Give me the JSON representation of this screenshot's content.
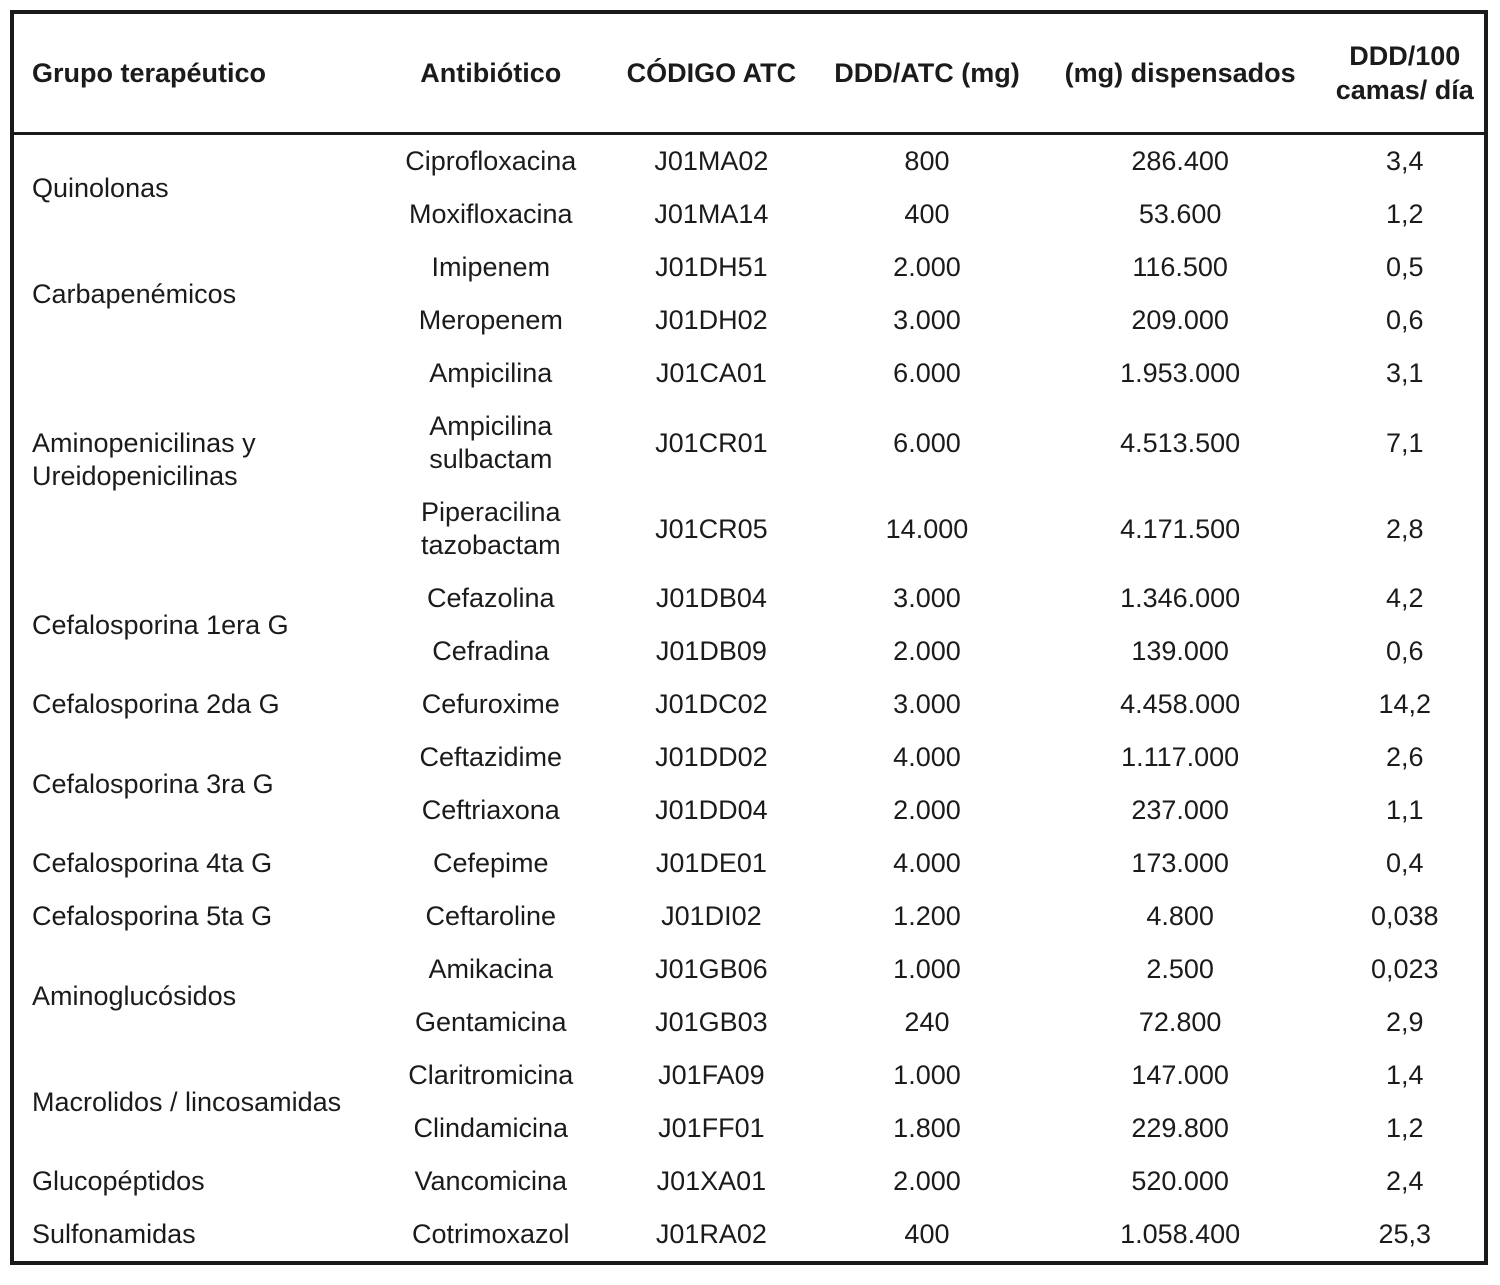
{
  "header": {
    "columns": [
      {
        "label": "Grupo terapéutico"
      },
      {
        "label": "Antibiótico"
      },
      {
        "label": "CÓDIGO ATC"
      },
      {
        "label": "DDD/ATC (mg)"
      },
      {
        "label": "(mg) dispensados"
      },
      {
        "label": "DDD/100 camas/ día"
      }
    ]
  },
  "groups": [
    {
      "name": "Quinolonas"
    },
    {
      "name": "Carbapenémicos"
    },
    {
      "name": "Aminopenicilinas y Ureidopenicilinas"
    },
    {
      "name": "Cefalosporina 1era G"
    },
    {
      "name": "Cefalosporina 2da G"
    },
    {
      "name": "Cefalosporina 3ra G"
    },
    {
      "name": "Cefalosporina 4ta G"
    },
    {
      "name": "Cefalosporina 5ta G"
    },
    {
      "name": "Aminoglucósidos"
    },
    {
      "name": "Macrolidos / lincosamidas"
    },
    {
      "name": "Glucopéptidos"
    },
    {
      "name": "Sulfonamidas"
    }
  ],
  "rows": [
    {
      "antibiotic": "Ciprofloxacina",
      "atc": "J01MA02",
      "ddd_atc": "800",
      "mg_disp": "286.400",
      "ddd100": "3,4"
    },
    {
      "antibiotic": "Moxifloxacina",
      "atc": "J01MA14",
      "ddd_atc": "400",
      "mg_disp": "53.600",
      "ddd100": "1,2"
    },
    {
      "antibiotic": "Imipenem",
      "atc": "J01DH51",
      "ddd_atc": "2.000",
      "mg_disp": "116.500",
      "ddd100": "0,5"
    },
    {
      "antibiotic": "Meropenem",
      "atc": "J01DH02",
      "ddd_atc": "3.000",
      "mg_disp": "209.000",
      "ddd100": "0,6"
    },
    {
      "antibiotic": "Ampicilina",
      "atc": "J01CA01",
      "ddd_atc": "6.000",
      "mg_disp": "1.953.000",
      "ddd100": "3,1"
    },
    {
      "antibiotic": "Ampicilina sulbactam",
      "atc": "J01CR01",
      "ddd_atc": "6.000",
      "mg_disp": "4.513.500",
      "ddd100": "7,1"
    },
    {
      "antibiotic": "Piperacilina tazobactam",
      "atc": "J01CR05",
      "ddd_atc": "14.000",
      "mg_disp": "4.171.500",
      "ddd100": "2,8"
    },
    {
      "antibiotic": "Cefazolina",
      "atc": "J01DB04",
      "ddd_atc": "3.000",
      "mg_disp": "1.346.000",
      "ddd100": "4,2"
    },
    {
      "antibiotic": "Cefradina",
      "atc": "J01DB09",
      "ddd_atc": "2.000",
      "mg_disp": "139.000",
      "ddd100": "0,6"
    },
    {
      "antibiotic": "Cefuroxime",
      "atc": "J01DC02",
      "ddd_atc": "3.000",
      "mg_disp": "4.458.000",
      "ddd100": "14,2"
    },
    {
      "antibiotic": "Ceftazidime",
      "atc": "J01DD02",
      "ddd_atc": "4.000",
      "mg_disp": "1.117.000",
      "ddd100": "2,6"
    },
    {
      "antibiotic": "Ceftriaxona",
      "atc": "J01DD04",
      "ddd_atc": "2.000",
      "mg_disp": "237.000",
      "ddd100": "1,1"
    },
    {
      "antibiotic": "Cefepime",
      "atc": "J01DE01",
      "ddd_atc": "4.000",
      "mg_disp": "173.000",
      "ddd100": "0,4"
    },
    {
      "antibiotic": "Ceftaroline",
      "atc": "J01DI02",
      "ddd_atc": "1.200",
      "mg_disp": "4.800",
      "ddd100": "0,038"
    },
    {
      "antibiotic": "Amikacina",
      "atc": "J01GB06",
      "ddd_atc": "1.000",
      "mg_disp": "2.500",
      "ddd100": "0,023"
    },
    {
      "antibiotic": "Gentamicina",
      "atc": "J01GB03",
      "ddd_atc": "240",
      "mg_disp": "72.800",
      "ddd100": "2,9"
    },
    {
      "antibiotic": "Claritromicina",
      "atc": "J01FA09",
      "ddd_atc": "1.000",
      "mg_disp": "147.000",
      "ddd100": "1,4"
    },
    {
      "antibiotic": "Clindamicina",
      "atc": "J01FF01",
      "ddd_atc": "1.800",
      "mg_disp": "229.800",
      "ddd100": "1,2"
    },
    {
      "antibiotic": "Vancomicina",
      "atc": "J01XA01",
      "ddd_atc": "2.000",
      "mg_disp": "520.000",
      "ddd100": "2,4"
    },
    {
      "antibiotic": "Cotrimoxazol",
      "atc": "J01RA02",
      "ddd_atc": "400",
      "mg_disp": "1.058.400",
      "ddd100": "25,3"
    }
  ]
}
